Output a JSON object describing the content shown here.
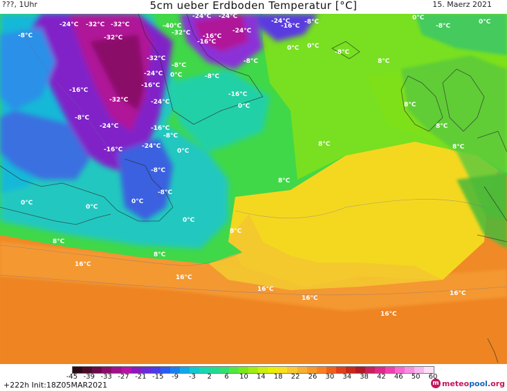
{
  "header": {
    "left": "???, 1Uhr",
    "title": "5cm ueber Erdboden Temperatur [°C]",
    "date": "15. Maerz 2021"
  },
  "map": {
    "temperature_labels": [
      "-24°C",
      "-32°C",
      "-32°C",
      "-40°C",
      "-32°C",
      "-24°C",
      "-24°C",
      "-16°C",
      "-8°C",
      "-32°C",
      "-16°C",
      "-24°C",
      "-24°C",
      "-8°C",
      "0°C",
      "-8°C",
      "-32°C",
      "-16°C",
      "-16°C",
      "-32°C",
      "-24°C",
      "-24°C",
      "-8°C",
      "-16°C",
      "0°C",
      "-8°C",
      "-24°C",
      "-16°C",
      "-24°C",
      "-8°C",
      "-16°C",
      "0°C",
      "-8°C",
      "-16°C",
      "-8°C",
      "0°C",
      "0°C",
      "0°C",
      "8°C",
      "-8°C",
      "0°C",
      "8°C",
      "-8°C",
      "8°C",
      "8°C",
      "8°C",
      "8°C",
      "0°C",
      "8°C",
      "8°C",
      "8°C",
      "16°C",
      "16°C",
      "16°C",
      "16°C",
      "16°C",
      "16°C",
      "0°C",
      "0°C",
      "-8°C",
      "0°C"
    ]
  },
  "colorbar": {
    "ticks": [
      "-45",
      "-39",
      "-33",
      "-27",
      "-21",
      "-15",
      "-9",
      "-3",
      "2",
      "6",
      "10",
      "14",
      "18",
      "22",
      "26",
      "30",
      "34",
      "38",
      "42",
      "46",
      "50",
      "60"
    ],
    "colors": [
      "#2a0a12",
      "#4a0a2a",
      "#6a0a48",
      "#8a0c6a",
      "#a0108a",
      "#b812a8",
      "#8a1ac0",
      "#6a2ad8",
      "#4a3ae8",
      "#2a5cf0",
      "#1a80f0",
      "#10a8e8",
      "#10c8d0",
      "#18d8b0",
      "#20dc90",
      "#30e070",
      "#50e840",
      "#78ea18",
      "#a0ee10",
      "#c8f010",
      "#e8f000",
      "#f8e020",
      "#f8c830",
      "#f8b030",
      "#f89828",
      "#f88020",
      "#f06018",
      "#e04018",
      "#c82818",
      "#b01828",
      "#c8205a",
      "#e0288a",
      "#f040b0",
      "#f868d0",
      "#f890e0",
      "#f8b8f0",
      "#fce0f8"
    ]
  },
  "footer": {
    "run_info": "+222h  Init:18Z05MAR2021",
    "logo_mark": "m",
    "logo_part1": "meteo",
    "logo_part2": "pool",
    "logo_part3": ".org"
  }
}
